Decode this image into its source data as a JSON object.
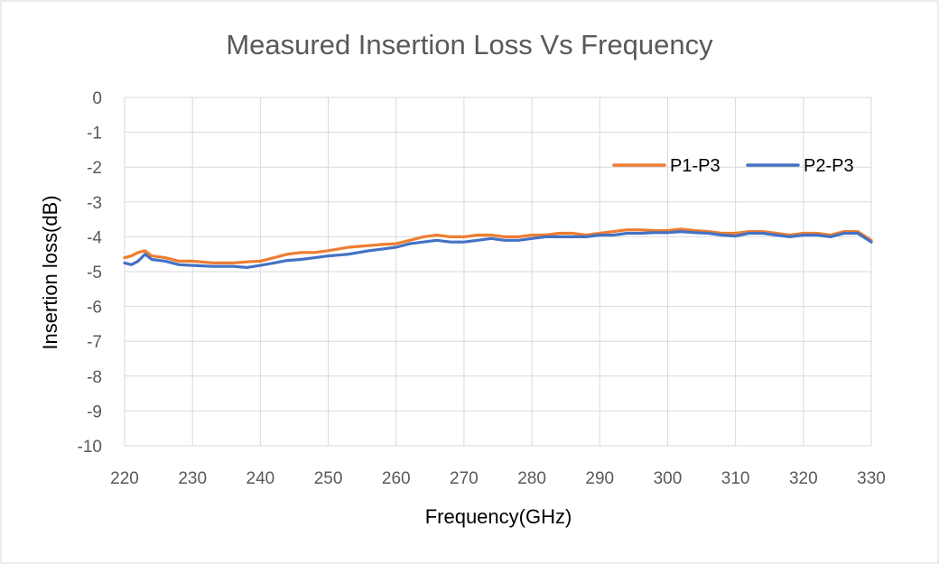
{
  "chart_data": {
    "type": "line",
    "title": "Measured Insertion Loss Vs Frequency",
    "xlabel": "Frequency(GHz)",
    "ylabel": "Insertion loss(dB)",
    "xlim": [
      220,
      330
    ],
    "ylim": [
      -10,
      0
    ],
    "x_ticks": [
      220,
      230,
      240,
      250,
      260,
      270,
      280,
      290,
      300,
      310,
      320,
      330
    ],
    "y_ticks": [
      0,
      -1,
      -2,
      -3,
      -4,
      -5,
      -6,
      -7,
      -8,
      -9,
      -10
    ],
    "grid": true,
    "legend_position": "top-right",
    "x": [
      220,
      221,
      222,
      223,
      224,
      226,
      228,
      230,
      233,
      236,
      238,
      240,
      242,
      244,
      246,
      248,
      250,
      253,
      256,
      258,
      260,
      262,
      264,
      266,
      268,
      270,
      272,
      274,
      276,
      278,
      280,
      282,
      284,
      286,
      288,
      290,
      292,
      294,
      296,
      298,
      300,
      302,
      304,
      306,
      308,
      310,
      312,
      314,
      316,
      318,
      320,
      322,
      324,
      326,
      328,
      330
    ],
    "series": [
      {
        "name": "P1-P3",
        "color": "#ED7D31",
        "values": [
          -4.6,
          -4.55,
          -4.45,
          -4.4,
          -4.55,
          -4.6,
          -4.7,
          -4.7,
          -4.75,
          -4.75,
          -4.72,
          -4.7,
          -4.6,
          -4.5,
          -4.45,
          -4.45,
          -4.4,
          -4.3,
          -4.25,
          -4.22,
          -4.2,
          -4.1,
          -4.0,
          -3.95,
          -4.0,
          -4.0,
          -3.95,
          -3.95,
          -4.0,
          -4.0,
          -3.95,
          -3.95,
          -3.9,
          -3.9,
          -3.95,
          -3.9,
          -3.85,
          -3.8,
          -3.8,
          -3.82,
          -3.82,
          -3.78,
          -3.82,
          -3.85,
          -3.9,
          -3.9,
          -3.85,
          -3.85,
          -3.9,
          -3.95,
          -3.9,
          -3.9,
          -3.95,
          -3.85,
          -3.85,
          -4.1
        ]
      },
      {
        "name": "P2-P3",
        "color": "#4472C4",
        "values": [
          -4.75,
          -4.8,
          -4.7,
          -4.5,
          -4.65,
          -4.7,
          -4.8,
          -4.82,
          -4.85,
          -4.85,
          -4.88,
          -4.82,
          -4.75,
          -4.68,
          -4.65,
          -4.6,
          -4.55,
          -4.5,
          -4.4,
          -4.35,
          -4.3,
          -4.2,
          -4.15,
          -4.1,
          -4.15,
          -4.15,
          -4.1,
          -4.05,
          -4.1,
          -4.1,
          -4.05,
          -4.0,
          -4.0,
          -4.0,
          -4.0,
          -3.95,
          -3.95,
          -3.9,
          -3.9,
          -3.88,
          -3.88,
          -3.85,
          -3.88,
          -3.9,
          -3.95,
          -3.98,
          -3.9,
          -3.9,
          -3.95,
          -4.0,
          -3.95,
          -3.95,
          -4.0,
          -3.9,
          -3.9,
          -4.15
        ]
      }
    ]
  }
}
